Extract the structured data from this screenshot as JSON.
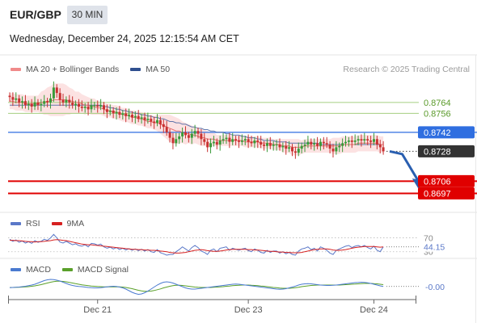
{
  "header": {
    "symbol": "EUR/GBP",
    "timeframe": "30 MIN",
    "datetime": "Wednesday, December 24, 2025 12:15:54 AM CET"
  },
  "legend": {
    "ma20": "MA 20 + Bollinger Bands",
    "ma50": "MA 50",
    "rsi": "RSI",
    "rsi_ma": "9MA",
    "macd": "MACD",
    "macd_signal": "MACD Signal"
  },
  "credit": "Research © 2025 Trading Central",
  "colors": {
    "up": "#3a9a3a",
    "down": "#c83232",
    "ma20": "#e87070",
    "ma50": "#3a5a9c",
    "band": "#fbd8d8",
    "support": "#e00000",
    "resistance": "#a5cf80",
    "last": "#2f6ee0",
    "arrow": "#2a5fb0",
    "rsi": "#5a78c8",
    "rsi_ma": "#d62020",
    "macd": "#4a7ad0",
    "macd_signal": "#5aa02a"
  },
  "chart_data": [
    {
      "type": "candlestick",
      "ylim": [
        0.8686,
        0.8783
      ],
      "xlim": [
        0,
        120
      ],
      "x_ticks": [
        {
          "x": 28,
          "label": "Dec 21"
        },
        {
          "x": 76,
          "label": "Dec 23"
        },
        {
          "x": 116,
          "label": "Dec 24"
        }
      ],
      "close": [
        0.8768,
        0.8766,
        0.8767,
        0.8764,
        0.8765,
        0.8762,
        0.8763,
        0.8761,
        0.8764,
        0.8762,
        0.8763,
        0.8765,
        0.8764,
        0.8767,
        0.8775,
        0.8771,
        0.8766,
        0.8764,
        0.8766,
        0.8764,
        0.8762,
        0.8763,
        0.8761,
        0.876,
        0.8761,
        0.8759,
        0.8762,
        0.8762,
        0.8761,
        0.8762,
        0.8759,
        0.8757,
        0.8758,
        0.8756,
        0.8757,
        0.8755,
        0.8756,
        0.8754,
        0.8755,
        0.8753,
        0.8754,
        0.8752,
        0.8753,
        0.8751,
        0.8752,
        0.875,
        0.8749,
        0.8751,
        0.8748,
        0.8746,
        0.8742,
        0.8738,
        0.8734,
        0.8737,
        0.8739,
        0.8742,
        0.874,
        0.8738,
        0.8741,
        0.8743,
        0.8741,
        0.8737,
        0.8735,
        0.8731,
        0.8734,
        0.8735,
        0.8733,
        0.8736,
        0.8737,
        0.8738,
        0.8735,
        0.8737,
        0.8736,
        0.8735,
        0.8736,
        0.8737,
        0.8735,
        0.8734,
        0.8736,
        0.8735,
        0.8733,
        0.8732,
        0.8734,
        0.8732,
        0.8733,
        0.8733,
        0.8731,
        0.8732,
        0.873,
        0.8731,
        0.8728,
        0.8727,
        0.873,
        0.8732,
        0.8733,
        0.8735,
        0.8733,
        0.8734,
        0.8732,
        0.8735,
        0.8734,
        0.8733,
        0.873,
        0.8728,
        0.8731,
        0.8732,
        0.8734,
        0.8735,
        0.8736,
        0.8735,
        0.8736,
        0.8737,
        0.8736,
        0.8737,
        0.8736,
        0.8735,
        0.8737,
        0.8733,
        0.8731,
        0.8728
      ],
      "ma20": [
        0.8765,
        0.8765,
        0.8764,
        0.8764,
        0.8764,
        0.8763,
        0.8763,
        0.8763,
        0.8763,
        0.8763,
        0.8764,
        0.8764,
        0.8765,
        0.8765,
        0.8766,
        0.8766,
        0.8766,
        0.8766,
        0.8766,
        0.8765,
        0.8765,
        0.8764,
        0.8764,
        0.8763,
        0.8762,
        0.8762,
        0.8761,
        0.8761,
        0.876,
        0.876,
        0.8759,
        0.8758,
        0.8758,
        0.8757,
        0.8757,
        0.8756,
        0.8755,
        0.8755,
        0.8754,
        0.8753,
        0.8753,
        0.8752,
        0.8752,
        0.8751,
        0.875,
        0.875,
        0.8749,
        0.8749,
        0.8748,
        0.8747,
        0.8746,
        0.8745,
        0.8744,
        0.8743,
        0.8743,
        0.8742,
        0.8741,
        0.8741,
        0.874,
        0.874,
        0.8739,
        0.8738,
        0.8738,
        0.8737,
        0.8737,
        0.8737,
        0.8736,
        0.8736,
        0.8736,
        0.8736,
        0.8736,
        0.8736,
        0.8736,
        0.8736,
        0.8736,
        0.8735,
        0.8735,
        0.8735,
        0.8735,
        0.8735,
        0.8734,
        0.8734,
        0.8734,
        0.8734,
        0.8733,
        0.8733,
        0.8733,
        0.8732,
        0.8732,
        0.8732,
        0.8731,
        0.8731,
        0.8731,
        0.8731,
        0.8732,
        0.8732,
        0.8732,
        0.8732,
        0.8732,
        0.8732,
        0.8732,
        0.8732,
        0.8732,
        0.8732,
        0.8732,
        0.8732,
        0.8733,
        0.8733,
        0.8733,
        0.8733,
        0.8733,
        0.8734,
        0.8734,
        0.8734,
        0.8734,
        0.8734,
        0.8734,
        0.8734,
        0.8733,
        0.8733
      ],
      "bollinger_width": [
        0.0006,
        0.0006,
        0.0006,
        0.0006,
        0.0006,
        0.0006,
        0.0006,
        0.0006,
        0.0006,
        0.0006,
        0.0008,
        0.0009,
        0.001,
        0.0011,
        0.0012,
        0.0012,
        0.0012,
        0.0012,
        0.0011,
        0.001,
        0.0009,
        0.0008,
        0.0008,
        0.0007,
        0.0007,
        0.0006,
        0.0006,
        0.0006,
        0.0005,
        0.0005,
        0.0005,
        0.0005,
        0.0005,
        0.0005,
        0.0005,
        0.0005,
        0.0005,
        0.0005,
        0.0005,
        0.0005,
        0.0005,
        0.0005,
        0.0005,
        0.0005,
        0.0005,
        0.0005,
        0.0005,
        0.0006,
        0.0007,
        0.0008,
        0.0009,
        0.001,
        0.001,
        0.001,
        0.0009,
        0.0008,
        0.0008,
        0.0007,
        0.0007,
        0.0006,
        0.0006,
        0.0006,
        0.0006,
        0.0006,
        0.0005,
        0.0005,
        0.0004,
        0.0004,
        0.0004,
        0.0004,
        0.0004,
        0.0004,
        0.0004,
        0.0004,
        0.0004,
        0.0004,
        0.0004,
        0.0004,
        0.0004,
        0.0004,
        0.0004,
        0.0004,
        0.0004,
        0.0004,
        0.0004,
        0.0004,
        0.0004,
        0.0005,
        0.0005,
        0.0005,
        0.0006,
        0.0006,
        0.0006,
        0.0005,
        0.0005,
        0.0005,
        0.0005,
        0.0005,
        0.0005,
        0.0005,
        0.0005,
        0.0005,
        0.0005,
        0.0006,
        0.0006,
        0.0006,
        0.0006,
        0.0006,
        0.0006,
        0.0006,
        0.0006,
        0.0006,
        0.0006,
        0.0006,
        0.0006,
        0.0006,
        0.0006,
        0.0006,
        0.0006,
        0.0006
      ],
      "ma50": [
        0.8762,
        0.8762,
        0.8762,
        0.8762,
        0.8762,
        0.8762,
        0.8762,
        0.8762,
        0.8762,
        0.8762,
        0.8762,
        0.8762,
        0.8762,
        0.8762,
        0.8762,
        0.8762,
        0.8762,
        0.8762,
        0.8762,
        0.8762,
        0.8762,
        0.8762,
        0.8762,
        0.8762,
        0.8762,
        0.8762,
        0.8762,
        0.8762,
        0.8762,
        0.8762,
        0.8761,
        0.8761,
        0.876,
        0.876,
        0.8759,
        0.8759,
        0.8758,
        0.8758,
        0.8757,
        0.8757,
        0.8756,
        0.8756,
        0.8755,
        0.8755,
        0.8754,
        0.8754,
        0.8753,
        0.8753,
        0.8752,
        0.8752,
        0.8751,
        0.875,
        0.875,
        0.8749,
        0.8749,
        0.8748,
        0.8748,
        0.8747,
        0.8746,
        0.8746,
        0.8745,
        0.8745,
        0.8744,
        0.8744,
        0.8743,
        0.8743,
        0.8742,
        0.8742,
        0.8742,
        0.8741,
        0.8741,
        0.874,
        0.874,
        0.874,
        0.8739,
        0.8739,
        0.8738,
        0.8738,
        0.8738,
        0.8737,
        0.8737,
        0.8736,
        0.8736,
        0.8736,
        0.8736,
        0.8735,
        0.8735,
        0.8735,
        0.8735,
        0.8734,
        0.8734,
        0.8734,
        0.8734,
        0.8734,
        0.8734,
        0.8734,
        0.8734,
        0.8734,
        0.8734,
        0.8733,
        0.8733,
        0.8733,
        0.8733,
        0.8733,
        0.8733,
        0.8733,
        0.8733,
        0.8733,
        0.8733,
        0.8733,
        0.8733,
        0.8733,
        0.8733,
        0.8733,
        0.8733,
        0.8733,
        0.8733,
        0.8733,
        0.8733,
        0.8733
      ],
      "levels": [
        {
          "value": 0.8764,
          "label": "0.8764",
          "kind": "resistance"
        },
        {
          "value": 0.8756,
          "label": "0.8756",
          "kind": "resistance"
        },
        {
          "value": 0.8742,
          "label": "0.8742",
          "kind": "last"
        },
        {
          "value": 0.8728,
          "label": "0.8728",
          "kind": "current"
        },
        {
          "value": 0.8706,
          "label": "0.8706",
          "kind": "support"
        },
        {
          "value": 0.8697,
          "label": "0.8697",
          "kind": "support"
        }
      ],
      "forecast_arrow": {
        "from": {
          "x": 120,
          "y": 0.8728
        },
        "mid": {
          "x": 125,
          "y": 0.8726
        },
        "to": {
          "x": 130,
          "y": 0.8702
        }
      }
    },
    {
      "type": "line",
      "indicator": "RSI",
      "ylim": [
        20,
        90
      ],
      "levels": [
        {
          "value": 70,
          "label": "70"
        },
        {
          "value": 30,
          "label": "30"
        }
      ],
      "current_label": "44.15",
      "series": [
        {
          "name": "RSI",
          "values": [
            66,
            60,
            64,
            57,
            61,
            55,
            59,
            54,
            62,
            57,
            60,
            66,
            63,
            70,
            80,
            70,
            58,
            55,
            60,
            55,
            50,
            53,
            48,
            46,
            50,
            44,
            54,
            53,
            49,
            52,
            44,
            40,
            43,
            38,
            42,
            36,
            40,
            35,
            39,
            34,
            38,
            33,
            37,
            32,
            36,
            30,
            28,
            36,
            27,
            24,
            20,
            22,
            22,
            30,
            36,
            44,
            38,
            32,
            42,
            48,
            42,
            32,
            28,
            22,
            34,
            38,
            30,
            40,
            42,
            44,
            34,
            40,
            37,
            34,
            38,
            40,
            33,
            30,
            38,
            34,
            28,
            26,
            34,
            28,
            32,
            32,
            26,
            30,
            24,
            28,
            22,
            20,
            32,
            38,
            40,
            44,
            36,
            40,
            32,
            44,
            40,
            34,
            26,
            22,
            34,
            38,
            42,
            46,
            48,
            42,
            46,
            48,
            44,
            48,
            42,
            38,
            46,
            34,
            30,
            44
          ]
        },
        {
          "name": "9MA",
          "values": [
            63,
            63,
            62,
            62,
            61,
            60,
            59,
            59,
            58,
            59,
            59,
            60,
            61,
            62,
            64,
            65,
            64,
            63,
            62,
            60,
            58,
            56,
            54,
            52,
            51,
            50,
            50,
            49,
            48,
            47,
            46,
            45,
            44,
            43,
            42,
            41,
            40,
            39,
            38,
            37,
            37,
            36,
            36,
            35,
            35,
            34,
            34,
            33,
            32,
            31,
            30,
            28,
            27,
            26,
            26,
            27,
            28,
            30,
            32,
            34,
            35,
            36,
            35,
            33,
            32,
            31,
            31,
            32,
            33,
            35,
            36,
            37,
            37,
            37,
            37,
            37,
            36,
            36,
            35,
            35,
            34,
            33,
            32,
            31,
            31,
            30,
            29,
            29,
            28,
            28,
            27,
            27,
            27,
            28,
            30,
            32,
            34,
            36,
            37,
            38,
            38,
            38,
            37,
            35,
            34,
            34,
            35,
            36,
            38,
            40,
            42,
            43,
            44,
            45,
            45,
            45,
            45,
            44,
            43,
            44
          ]
        }
      ]
    },
    {
      "type": "line",
      "indicator": "MACD",
      "ylim": [
        -0.0006,
        0.0006
      ],
      "current_label": "-0.00",
      "series": [
        {
          "name": "MACD",
          "values": [
            -5e-05,
            -4e-05,
            -3e-05,
            -2e-05,
            0.0,
            2e-05,
            5e-05,
            8e-05,
            0.00012,
            0.00018,
            0.00024,
            0.0003,
            0.00034,
            0.00036,
            0.00035,
            0.00032,
            0.00028,
            0.00022,
            0.00016,
            0.0001,
            6e-05,
            3e-05,
            1e-05,
            0.0,
            -2e-05,
            -4e-05,
            -5e-05,
            -6e-05,
            -6e-05,
            -5e-05,
            -3e-05,
            -1e-05,
            1e-05,
            2e-05,
            1e-05,
            -2e-05,
            -6e-05,
            -0.00012,
            -0.0002,
            -0.00028,
            -0.00034,
            -0.00038,
            -0.00036,
            -0.0003,
            -0.00022,
            -0.00012,
            -2e-05,
            8e-05,
            0.00016,
            0.00022,
            0.00024,
            0.00022,
            0.00018,
            0.00012,
            6e-05,
            0.0,
            -6e-05,
            -0.0001,
            -0.00012,
            -0.00012,
            -0.0001,
            -8e-05,
            -6e-05,
            -4e-05,
            -2e-05,
            0.0,
            2e-05,
            4e-05,
            6e-05,
            8e-05,
            0.0001,
            0.00012,
            0.00013,
            0.00012,
            0.0001,
            8e-05,
            6e-05,
            4e-05,
            2e-05,
            0.0,
            -2e-05,
            -4e-05,
            -6e-05,
            -8e-05,
            -0.0001,
            -0.00012,
            -0.00013,
            -0.00012,
            -0.0001,
            -6e-05,
            -2e-05,
            3e-05,
            8e-05,
            0.00012,
            0.00014,
            0.00015,
            0.00014,
            0.00012,
            0.0001,
            8e-05,
            7e-05,
            6e-05,
            6e-05,
            7e-05,
            8e-05,
            0.0001,
            0.00012,
            0.00014,
            0.00016,
            0.00018,
            0.0002,
            0.00021,
            0.00022,
            0.00021,
            0.00019,
            0.00016,
            0.00012,
            8e-05,
            4e-05,
            1e-05
          ]
        },
        {
          "name": "MACD Signal",
          "values": [
            -4e-05,
            -4e-05,
            -3e-05,
            -3e-05,
            -2e-05,
            -1e-05,
            0.0,
            2e-05,
            4e-05,
            7e-05,
            0.0001,
            0.00014,
            0.00018,
            0.00022,
            0.00025,
            0.00027,
            0.00027,
            0.00026,
            0.00024,
            0.00021,
            0.00018,
            0.00015,
            0.00012,
            9e-05,
            7e-05,
            5e-05,
            3e-05,
            2e-05,
            1e-05,
            0.0,
            -1e-05,
            -1e-05,
            -1e-05,
            -1e-05,
            -1e-05,
            -1e-05,
            -2e-05,
            -4e-05,
            -7e-05,
            -0.0001,
            -0.00014,
            -0.00018,
            -0.00021,
            -0.00023,
            -0.00023,
            -0.00022,
            -0.00019,
            -0.00015,
            -0.00011,
            -6e-05,
            -2e-05,
            2e-05,
            5e-05,
            7e-05,
            7e-05,
            6e-05,
            4e-05,
            2e-05,
            0.0,
            -2e-05,
            -3e-05,
            -4e-05,
            -4e-05,
            -4e-05,
            -4e-05,
            -3e-05,
            -2e-05,
            -1e-05,
            0.0,
            2e-05,
            3e-05,
            5e-05,
            6e-05,
            7e-05,
            8e-05,
            8e-05,
            8e-05,
            7e-05,
            6e-05,
            5e-05,
            3e-05,
            2e-05,
            0.0,
            -2e-05,
            -4e-05,
            -5e-05,
            -7e-05,
            -8e-05,
            -8e-05,
            -8e-05,
            -7e-05,
            -5e-05,
            -3e-05,
            0.0,
            2e-05,
            4e-05,
            6e-05,
            7e-05,
            8e-05,
            8e-05,
            8e-05,
            8e-05,
            8e-05,
            8e-05,
            8e-05,
            8e-05,
            9e-05,
            0.0001,
            0.00011,
            0.00012,
            0.00013,
            0.00014,
            0.00015,
            0.00016,
            0.00016,
            0.00016,
            0.00015,
            0.00014,
            0.00012,
            0.0001
          ]
        }
      ]
    }
  ]
}
